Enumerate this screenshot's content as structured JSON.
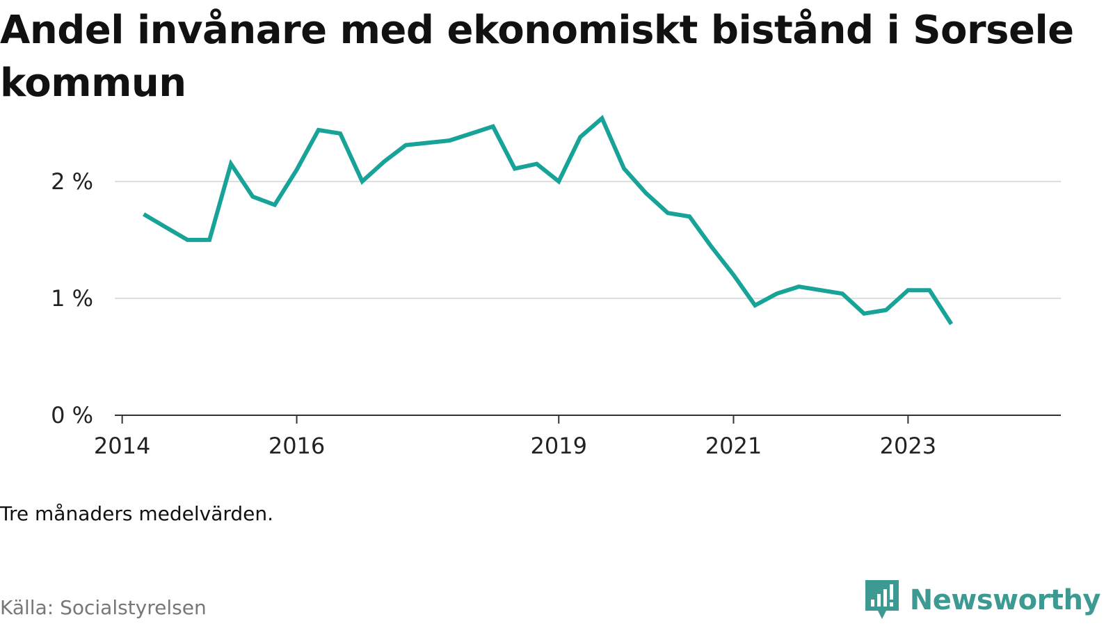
{
  "title": "Andel invånare med ekonomiskt bistånd i Sorsele kommun",
  "note": "Tre månaders medelvärden.",
  "source": "Källa: Socialstyrelsen",
  "brand": {
    "name": "Newsworthy",
    "color": "#3d9a93"
  },
  "colors": {
    "line": "#17a398",
    "grid": "#dddddd",
    "axis": "#333333"
  },
  "chart_data": {
    "type": "line",
    "title": "Andel invånare med ekonomiskt bistånd i Sorsele kommun",
    "xlabel": "",
    "ylabel": "",
    "y_unit": "%",
    "ylim": [
      0,
      2.6
    ],
    "xlim": [
      "2013-12-01",
      "2024-10-01"
    ],
    "y_ticks": [
      0,
      1,
      2
    ],
    "y_tick_labels": [
      "0 %",
      "1 %",
      "2 %"
    ],
    "x_ticks": [
      "2014-01-01",
      "2016-01-01",
      "2019-01-01",
      "2021-01-01",
      "2023-01-01"
    ],
    "x_tick_labels": [
      "2014",
      "2016",
      "2019",
      "2021",
      "2023"
    ],
    "grid": "horizontal",
    "series": [
      {
        "x": [
          "2014-04-01",
          "2014-07-01",
          "2014-10-01",
          "2015-01-01",
          "2015-04-01",
          "2015-07-01",
          "2015-10-01",
          "2016-01-01",
          "2016-04-01",
          "2016-07-01",
          "2016-10-01",
          "2017-01-01",
          "2017-04-01",
          "2017-07-01",
          "2017-10-01",
          "2018-01-01",
          "2018-04-01",
          "2018-07-01",
          "2018-10-01",
          "2019-01-01",
          "2019-04-01",
          "2019-07-01",
          "2019-10-01",
          "2020-01-01",
          "2020-04-01",
          "2020-07-01",
          "2020-10-01",
          "2021-01-01",
          "2021-04-01",
          "2021-07-01",
          "2021-10-01",
          "2022-01-01",
          "2022-04-01",
          "2022-07-01",
          "2022-10-01",
          "2023-01-01",
          "2023-04-01",
          "2023-07-01"
        ],
        "values": [
          1.72,
          1.61,
          1.5,
          1.5,
          2.15,
          1.87,
          1.8,
          2.1,
          2.44,
          2.41,
          2.0,
          2.17,
          2.31,
          2.33,
          2.35,
          2.41,
          2.47,
          2.11,
          2.15,
          2.0,
          2.38,
          2.54,
          2.11,
          1.9,
          1.73,
          1.7,
          1.44,
          1.2,
          0.94,
          1.04,
          1.1,
          1.07,
          1.04,
          0.87,
          0.9,
          1.07,
          1.07,
          0.78
        ]
      }
    ]
  }
}
